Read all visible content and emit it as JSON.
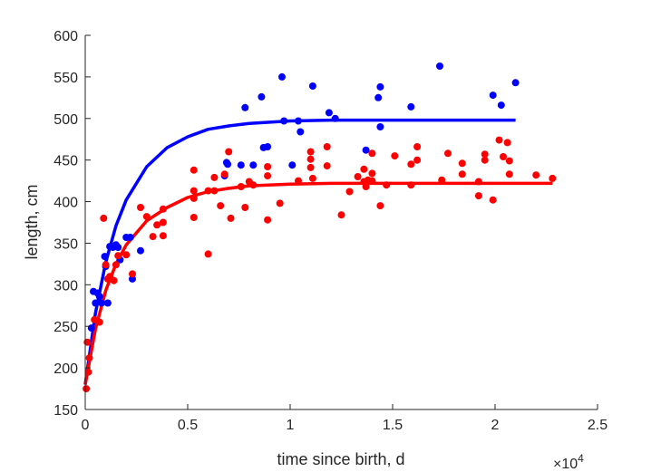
{
  "chart_data": {
    "type": "scatter",
    "title": "",
    "xlabel": "time since birth, d",
    "ylabel": "length, cm",
    "x_exponent_label": "×10",
    "x_exponent_power": "4",
    "xlim": [
      0,
      25000
    ],
    "ylim": [
      150,
      600
    ],
    "x_ticks": [
      0,
      5000,
      10000,
      15000,
      20000,
      25000
    ],
    "x_tick_labels": [
      "0",
      "0.5",
      "1",
      "1.5",
      "2",
      "2.5"
    ],
    "y_ticks": [
      150,
      200,
      250,
      300,
      350,
      400,
      450,
      500,
      550,
      600
    ],
    "y_tick_labels": [
      "150",
      "200",
      "250",
      "300",
      "350",
      "400",
      "450",
      "500",
      "550",
      "600"
    ],
    "grid": false,
    "legend": "none",
    "series": [
      {
        "color": "#0000ff",
        "points": [
          [
            300,
            248
          ],
          [
            400,
            292
          ],
          [
            500,
            278
          ],
          [
            600,
            290
          ],
          [
            700,
            286
          ],
          [
            800,
            278
          ],
          [
            950,
            334
          ],
          [
            1000,
            322
          ],
          [
            1100,
            278
          ],
          [
            1200,
            346
          ],
          [
            1350,
            345
          ],
          [
            1500,
            348
          ],
          [
            1600,
            345
          ],
          [
            1700,
            330
          ],
          [
            2000,
            357
          ],
          [
            2200,
            357
          ],
          [
            2300,
            307
          ],
          [
            2700,
            341
          ],
          [
            6800,
            431
          ],
          [
            6900,
            447
          ],
          [
            6950,
            445
          ],
          [
            7600,
            444
          ],
          [
            7800,
            513
          ],
          [
            8200,
            444
          ],
          [
            8600,
            526
          ],
          [
            8700,
            465
          ],
          [
            8900,
            466
          ],
          [
            9600,
            550
          ],
          [
            9700,
            497
          ],
          [
            10100,
            444
          ],
          [
            10400,
            497
          ],
          [
            10500,
            484
          ],
          [
            11100,
            539
          ],
          [
            11900,
            507
          ],
          [
            12200,
            500
          ],
          [
            13700,
            462
          ],
          [
            14300,
            525
          ],
          [
            14400,
            538
          ],
          [
            14400,
            490
          ],
          [
            15900,
            514
          ],
          [
            17300,
            563
          ],
          [
            19900,
            528
          ],
          [
            20300,
            516
          ],
          [
            21000,
            543
          ]
        ],
        "fit": {
          "x": [
            0,
            500,
            1000,
            1500,
            2000,
            3000,
            4000,
            5000,
            6000,
            7000,
            8000,
            10000,
            12000,
            15000,
            18000,
            21000
          ],
          "y": [
            180,
            266,
            327,
            371,
            402,
            442,
            465,
            478,
            487,
            491,
            494,
            497,
            498,
            498,
            498,
            498
          ]
        }
      },
      {
        "color": "#ff0000",
        "points": [
          [
            50,
            175
          ],
          [
            100,
            231
          ],
          [
            150,
            195
          ],
          [
            200,
            212
          ],
          [
            450,
            258
          ],
          [
            700,
            255
          ],
          [
            900,
            380
          ],
          [
            1000,
            324
          ],
          [
            1100,
            307
          ],
          [
            1200,
            310
          ],
          [
            1400,
            305
          ],
          [
            1500,
            324
          ],
          [
            1600,
            335
          ],
          [
            2000,
            336
          ],
          [
            2300,
            313
          ],
          [
            2700,
            393
          ],
          [
            3000,
            382
          ],
          [
            3300,
            358
          ],
          [
            3500,
            372
          ],
          [
            3800,
            391
          ],
          [
            3800,
            359
          ],
          [
            3800,
            375
          ],
          [
            5300,
            438
          ],
          [
            5300,
            404
          ],
          [
            5300,
            381
          ],
          [
            5300,
            413
          ],
          [
            6000,
            337
          ],
          [
            6000,
            413
          ],
          [
            6300,
            429
          ],
          [
            6300,
            413
          ],
          [
            6600,
            395
          ],
          [
            6800,
            433
          ],
          [
            7000,
            460
          ],
          [
            7100,
            380
          ],
          [
            7600,
            418
          ],
          [
            7800,
            393
          ],
          [
            8000,
            424
          ],
          [
            8200,
            420
          ],
          [
            8900,
            442
          ],
          [
            8900,
            431
          ],
          [
            8900,
            378
          ],
          [
            9500,
            398
          ],
          [
            10400,
            425
          ],
          [
            11000,
            460
          ],
          [
            11000,
            451
          ],
          [
            11000,
            441
          ],
          [
            11100,
            428
          ],
          [
            11800,
            466
          ],
          [
            11800,
            443
          ],
          [
            12500,
            384
          ],
          [
            12900,
            412
          ],
          [
            13300,
            430
          ],
          [
            13600,
            439
          ],
          [
            13600,
            424
          ],
          [
            13700,
            418
          ],
          [
            13800,
            426
          ],
          [
            14000,
            458
          ],
          [
            14000,
            434
          ],
          [
            14000,
            425
          ],
          [
            14400,
            395
          ],
          [
            14700,
            420
          ],
          [
            15100,
            455
          ],
          [
            15900,
            445
          ],
          [
            15900,
            420
          ],
          [
            16200,
            466
          ],
          [
            16200,
            450
          ],
          [
            17400,
            426
          ],
          [
            17700,
            458
          ],
          [
            18400,
            446
          ],
          [
            18400,
            433
          ],
          [
            19200,
            424
          ],
          [
            19200,
            407
          ],
          [
            19500,
            457
          ],
          [
            19500,
            450
          ],
          [
            19900,
            402
          ],
          [
            20200,
            474
          ],
          [
            20400,
            454
          ],
          [
            20600,
            471
          ],
          [
            20700,
            449
          ],
          [
            20700,
            433
          ],
          [
            22000,
            432
          ],
          [
            22800,
            428
          ]
        ],
        "fit": {
          "x": [
            0,
            500,
            1000,
            1500,
            2000,
            3000,
            4000,
            5000,
            6000,
            7000,
            8000,
            10000,
            12000,
            15000,
            18000,
            21000,
            22800
          ],
          "y": [
            180,
            247,
            293,
            325,
            348,
            377,
            393,
            405,
            412,
            416,
            419,
            421,
            422,
            422,
            422,
            422,
            422
          ]
        }
      }
    ]
  }
}
